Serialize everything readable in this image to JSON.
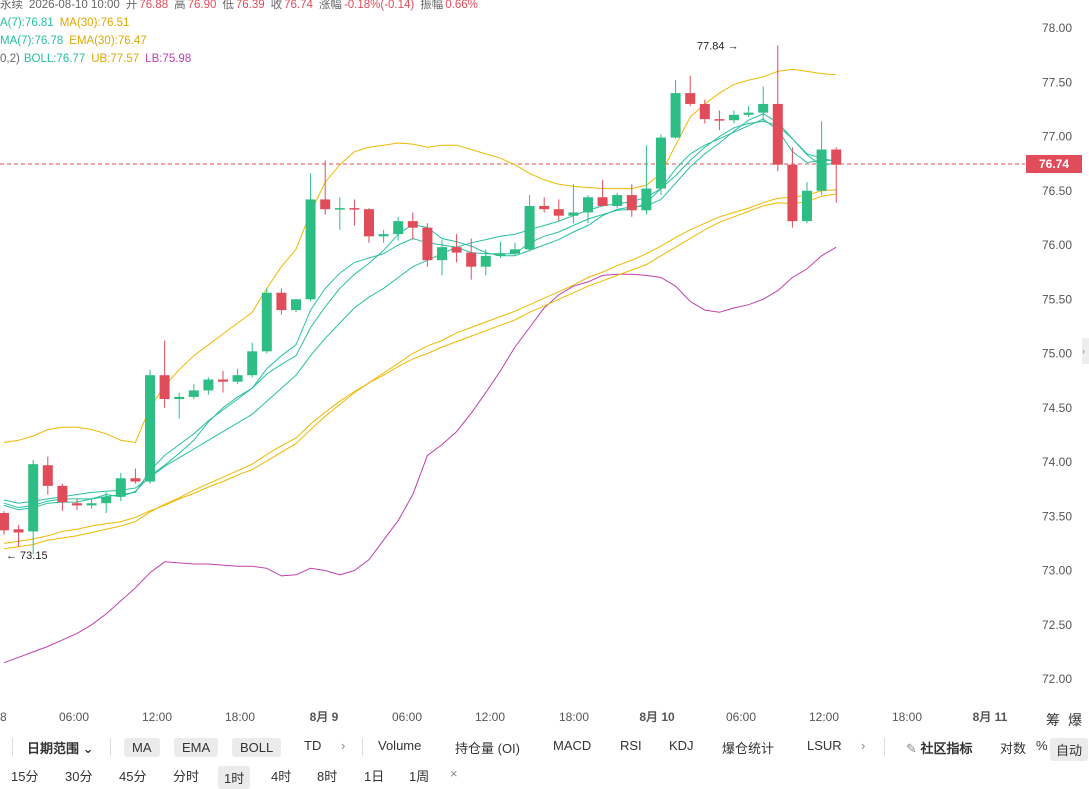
{
  "header": {
    "line1": {
      "name": "永续",
      "time": "2026-08-10 10:00",
      "open_label": "开",
      "open": "76.88",
      "high_label": "高",
      "high": "76.90",
      "low_label": "低",
      "low": "76.39",
      "close_label": "收",
      "close": "76.74",
      "change_label": "涨幅",
      "change": "-0.18%(-0.14)",
      "amp_label": "振幅",
      "amp": "0.66%"
    },
    "line2": {
      "ma7": "A(7):76.81",
      "ma30": "MA(30):76.51"
    },
    "line3": {
      "ema7": "MA(7):76.78",
      "ema30": "EMA(30):76.47"
    },
    "line4": {
      "boll_param": "0,2)",
      "boll": "BOLL:76.77",
      "ub": "UB:77.57",
      "lb": "LB:75.98"
    }
  },
  "colors": {
    "up": "#2ebd85",
    "down": "#e04c5a",
    "ma7": "#27c0a0",
    "ma30": "#f0b800",
    "ub": "#f0b800",
    "lb": "#c040b0",
    "mid": "#27c0a0"
  },
  "current_price": "76.74",
  "annotations": {
    "high": "77.84",
    "low": "73.15"
  },
  "chart_data": {
    "type": "candlestick",
    "y_ticks": [
      "78.00",
      "77.50",
      "77.00",
      "76.50",
      "76.00",
      "75.50",
      "75.00",
      "74.50",
      "74.00",
      "73.50",
      "73.00",
      "72.50",
      "72.00"
    ],
    "ylim": [
      71.9,
      78.1
    ],
    "x_ticks": [
      "8",
      "06:00",
      "12:00",
      "18:00",
      "8月 9",
      "06:00",
      "12:00",
      "18:00",
      "8月 10",
      "06:00",
      "12:00",
      "18:00",
      "8月 11"
    ],
    "candles": [
      {
        "o": 73.53,
        "h": 73.55,
        "l": 73.33,
        "c": 73.37
      },
      {
        "o": 73.38,
        "h": 73.42,
        "l": 73.22,
        "c": 73.35
      },
      {
        "o": 73.36,
        "h": 74.02,
        "l": 73.15,
        "c": 73.98
      },
      {
        "o": 73.97,
        "h": 74.05,
        "l": 73.7,
        "c": 73.78
      },
      {
        "o": 73.78,
        "h": 73.8,
        "l": 73.55,
        "c": 73.63
      },
      {
        "o": 73.62,
        "h": 73.66,
        "l": 73.56,
        "c": 73.6
      },
      {
        "o": 73.6,
        "h": 73.66,
        "l": 73.57,
        "c": 73.62
      },
      {
        "o": 73.62,
        "h": 73.72,
        "l": 73.53,
        "c": 73.68
      },
      {
        "o": 73.68,
        "h": 73.9,
        "l": 73.64,
        "c": 73.85
      },
      {
        "o": 73.85,
        "h": 73.94,
        "l": 73.8,
        "c": 73.82
      },
      {
        "o": 73.82,
        "h": 74.85,
        "l": 73.8,
        "c": 74.8
      },
      {
        "o": 74.8,
        "h": 75.12,
        "l": 74.5,
        "c": 74.58
      },
      {
        "o": 74.58,
        "h": 74.64,
        "l": 74.4,
        "c": 74.6
      },
      {
        "o": 74.6,
        "h": 74.72,
        "l": 74.58,
        "c": 74.66
      },
      {
        "o": 74.66,
        "h": 74.78,
        "l": 74.62,
        "c": 74.76
      },
      {
        "o": 74.76,
        "h": 74.84,
        "l": 74.64,
        "c": 74.74
      },
      {
        "o": 74.74,
        "h": 74.86,
        "l": 74.72,
        "c": 74.8
      },
      {
        "o": 74.8,
        "h": 75.1,
        "l": 74.78,
        "c": 75.02
      },
      {
        "o": 75.02,
        "h": 75.6,
        "l": 75.0,
        "c": 75.56
      },
      {
        "o": 75.56,
        "h": 75.6,
        "l": 75.36,
        "c": 75.4
      },
      {
        "o": 75.4,
        "h": 75.5,
        "l": 75.38,
        "c": 75.5
      },
      {
        "o": 75.5,
        "h": 76.66,
        "l": 75.48,
        "c": 76.42
      },
      {
        "o": 76.42,
        "h": 76.78,
        "l": 76.28,
        "c": 76.33
      },
      {
        "o": 76.33,
        "h": 76.44,
        "l": 76.14,
        "c": 76.34
      },
      {
        "o": 76.34,
        "h": 76.42,
        "l": 76.18,
        "c": 76.33
      },
      {
        "o": 76.33,
        "h": 76.34,
        "l": 76.02,
        "c": 76.08
      },
      {
        "o": 76.08,
        "h": 76.14,
        "l": 76.02,
        "c": 76.1
      },
      {
        "o": 76.1,
        "h": 76.26,
        "l": 76.04,
        "c": 76.22
      },
      {
        "o": 76.22,
        "h": 76.3,
        "l": 76.05,
        "c": 76.16
      },
      {
        "o": 76.16,
        "h": 76.2,
        "l": 75.8,
        "c": 75.86
      },
      {
        "o": 75.86,
        "h": 76.05,
        "l": 75.72,
        "c": 75.98
      },
      {
        "o": 75.98,
        "h": 76.1,
        "l": 75.84,
        "c": 75.93
      },
      {
        "o": 75.93,
        "h": 76.06,
        "l": 75.68,
        "c": 75.8
      },
      {
        "o": 75.8,
        "h": 75.96,
        "l": 75.72,
        "c": 75.9
      },
      {
        "o": 75.9,
        "h": 76.03,
        "l": 75.88,
        "c": 75.92
      },
      {
        "o": 75.92,
        "h": 76.02,
        "l": 75.9,
        "c": 75.96
      },
      {
        "o": 75.96,
        "h": 76.46,
        "l": 75.94,
        "c": 76.36
      },
      {
        "o": 76.36,
        "h": 76.44,
        "l": 76.3,
        "c": 76.33
      },
      {
        "o": 76.33,
        "h": 76.42,
        "l": 76.22,
        "c": 76.27
      },
      {
        "o": 76.27,
        "h": 76.56,
        "l": 76.2,
        "c": 76.3
      },
      {
        "o": 76.3,
        "h": 76.46,
        "l": 76.2,
        "c": 76.44
      },
      {
        "o": 76.44,
        "h": 76.6,
        "l": 76.36,
        "c": 76.36
      },
      {
        "o": 76.36,
        "h": 76.48,
        "l": 76.34,
        "c": 76.46
      },
      {
        "o": 76.46,
        "h": 76.56,
        "l": 76.26,
        "c": 76.32
      },
      {
        "o": 76.32,
        "h": 76.92,
        "l": 76.28,
        "c": 76.52
      },
      {
        "o": 76.52,
        "h": 77.02,
        "l": 76.46,
        "c": 76.99
      },
      {
        "o": 76.99,
        "h": 77.52,
        "l": 76.98,
        "c": 77.4
      },
      {
        "o": 77.4,
        "h": 77.56,
        "l": 77.28,
        "c": 77.3
      },
      {
        "o": 77.3,
        "h": 77.34,
        "l": 77.12,
        "c": 77.16
      },
      {
        "o": 77.16,
        "h": 77.24,
        "l": 77.06,
        "c": 77.15
      },
      {
        "o": 77.15,
        "h": 77.24,
        "l": 77.12,
        "c": 77.2
      },
      {
        "o": 77.2,
        "h": 77.28,
        "l": 77.18,
        "c": 77.22
      },
      {
        "o": 77.22,
        "h": 77.46,
        "l": 77.14,
        "c": 77.3
      },
      {
        "o": 77.3,
        "h": 77.84,
        "l": 76.68,
        "c": 76.74
      },
      {
        "o": 76.74,
        "h": 76.9,
        "l": 76.16,
        "c": 76.22
      },
      {
        "o": 76.22,
        "h": 76.58,
        "l": 76.2,
        "c": 76.5
      },
      {
        "o": 76.5,
        "h": 77.14,
        "l": 76.46,
        "c": 76.88
      },
      {
        "o": 76.88,
        "h": 76.9,
        "l": 76.39,
        "c": 76.74
      }
    ],
    "series": [
      {
        "name": "MA(7)",
        "values": [
          73.6,
          73.56,
          73.58,
          73.62,
          73.63,
          73.63,
          73.66,
          73.7,
          73.68,
          73.73,
          73.87,
          73.97,
          74.08,
          74.2,
          74.37,
          74.5,
          74.6,
          74.68,
          74.81,
          74.9,
          74.98,
          75.24,
          75.43,
          75.6,
          75.73,
          75.83,
          75.95,
          76.1,
          76.19,
          76.16,
          76.06,
          76.03,
          75.99,
          75.93,
          75.9,
          75.9,
          75.95,
          76.0,
          76.05,
          76.12,
          76.18,
          76.27,
          76.33,
          76.35,
          76.36,
          76.42,
          76.57,
          76.72,
          76.84,
          76.94,
          77.05,
          77.15,
          77.21,
          77.13,
          76.98,
          76.83,
          76.73,
          76.76
        ]
      },
      {
        "name": "MA(30)",
        "values": [
          73.25,
          73.27,
          73.29,
          73.32,
          73.36,
          73.38,
          73.41,
          73.43,
          73.45,
          73.49,
          73.55,
          73.6,
          73.66,
          73.71,
          73.77,
          73.82,
          73.88,
          73.93,
          74.01,
          74.09,
          74.17,
          74.3,
          74.42,
          74.53,
          74.64,
          74.73,
          74.82,
          74.91,
          75.0,
          75.07,
          75.12,
          75.19,
          75.24,
          75.29,
          75.34,
          75.39,
          75.45,
          75.51,
          75.57,
          75.63,
          75.7,
          75.75,
          75.81,
          75.86,
          75.92,
          75.99,
          76.07,
          76.14,
          76.2,
          76.26,
          76.3,
          76.34,
          76.39,
          76.43,
          76.44,
          76.46,
          76.5,
          76.51
        ]
      },
      {
        "name": "UB",
        "values": [
          74.18,
          74.2,
          74.24,
          74.3,
          74.32,
          74.32,
          74.3,
          74.26,
          74.2,
          74.18,
          74.5,
          74.7,
          74.85,
          74.98,
          75.08,
          75.18,
          75.28,
          75.38,
          75.6,
          75.8,
          75.96,
          76.3,
          76.58,
          76.74,
          76.86,
          76.9,
          76.92,
          76.94,
          76.93,
          76.9,
          76.92,
          76.92,
          76.88,
          76.84,
          76.8,
          76.74,
          76.66,
          76.6,
          76.56,
          76.54,
          76.53,
          76.52,
          76.52,
          76.52,
          76.55,
          76.66,
          76.92,
          77.18,
          77.3,
          77.4,
          77.48,
          77.52,
          77.55,
          77.6,
          77.62,
          77.6,
          77.58,
          77.57
        ]
      },
      {
        "name": "LB",
        "values": [
          72.15,
          72.2,
          72.25,
          72.3,
          72.36,
          72.42,
          72.5,
          72.6,
          72.72,
          72.84,
          72.98,
          73.08,
          73.07,
          73.06,
          73.06,
          73.05,
          73.04,
          73.04,
          73.02,
          72.95,
          72.96,
          73.02,
          73.0,
          72.96,
          73.0,
          73.1,
          73.28,
          73.46,
          73.7,
          74.06,
          74.16,
          74.28,
          74.45,
          74.64,
          74.84,
          75.06,
          75.24,
          75.42,
          75.54,
          75.62,
          75.66,
          75.72,
          75.73,
          75.73,
          75.72,
          75.7,
          75.62,
          75.48,
          75.4,
          75.38,
          75.42,
          75.45,
          75.5,
          75.58,
          75.7,
          75.78,
          75.9,
          75.98
        ]
      }
    ],
    "extra_series": [
      {
        "values": [
          73.62,
          73.58,
          73.6,
          73.64,
          73.66,
          73.66,
          73.66,
          73.68,
          73.7,
          73.72,
          73.92,
          74.06,
          74.16,
          74.26,
          74.38,
          74.48,
          74.58,
          74.68,
          74.86,
          74.98,
          75.08,
          75.4,
          75.6,
          75.74,
          75.84,
          75.88,
          75.92,
          76.0,
          76.06,
          76.02,
          76.0,
          75.98,
          75.93,
          75.92,
          75.92,
          75.92,
          76.02,
          76.08,
          76.12,
          76.18,
          76.24,
          76.28,
          76.32,
          76.33,
          76.39,
          76.52,
          76.7,
          76.84,
          76.92,
          76.98,
          77.04,
          77.1,
          77.16,
          77.06,
          76.86,
          76.76,
          76.78,
          76.78
        ]
      },
      {
        "values": [
          73.2,
          73.22,
          73.24,
          73.28,
          73.3,
          73.32,
          73.35,
          73.38,
          73.41,
          73.45,
          73.54,
          73.61,
          73.67,
          73.74,
          73.8,
          73.86,
          73.92,
          73.98,
          74.07,
          74.15,
          74.22,
          74.35,
          74.46,
          74.56,
          74.65,
          74.73,
          74.8,
          74.88,
          74.95,
          75.0,
          75.06,
          75.11,
          75.16,
          75.21,
          75.26,
          75.31,
          75.38,
          75.44,
          75.5,
          75.56,
          75.62,
          75.67,
          75.72,
          75.77,
          75.82,
          75.9,
          75.98,
          76.06,
          76.14,
          76.21,
          76.26,
          76.31,
          76.36,
          76.39,
          76.38,
          76.4,
          76.45,
          76.47
        ]
      },
      {
        "values": [
          73.65,
          73.62,
          73.64,
          73.66,
          73.68,
          73.7,
          73.72,
          73.73,
          73.74,
          73.76,
          73.86,
          73.96,
          74.04,
          74.12,
          74.2,
          74.28,
          74.36,
          74.44,
          74.56,
          74.68,
          74.8,
          74.98,
          75.14,
          75.28,
          75.42,
          75.52,
          75.6,
          75.7,
          75.8,
          75.86,
          75.92,
          75.98,
          76.02,
          76.05,
          76.08,
          76.1,
          76.14,
          76.18,
          76.22,
          76.27,
          76.32,
          76.36,
          76.38,
          76.4,
          76.44,
          76.52,
          76.64,
          76.78,
          76.9,
          77.0,
          77.08,
          77.12,
          77.14,
          77.1,
          76.98,
          76.84,
          76.8,
          76.77
        ]
      }
    ]
  },
  "toolbar_top": {
    "date_range": "日期范围",
    "ma": "MA",
    "ema": "EMA",
    "boll": "BOLL",
    "td": "TD",
    "volume": "Volume",
    "oi": "持仓量 (OI)",
    "macd": "MACD",
    "rsi": "RSI",
    "kdj": "KDJ",
    "liq": "爆仓统计",
    "lsur": "LSUR",
    "community": "社区指标",
    "log": "对数",
    "pct": "%",
    "auto": "自动",
    "right_top1": "筹",
    "right_top2": "爆"
  },
  "toolbar_bottom": {
    "intervals": [
      "15分",
      "30分",
      "45分",
      "分时",
      "1时",
      "4时",
      "8时",
      "1日",
      "1周"
    ],
    "selected": "1时",
    "close": "×"
  }
}
